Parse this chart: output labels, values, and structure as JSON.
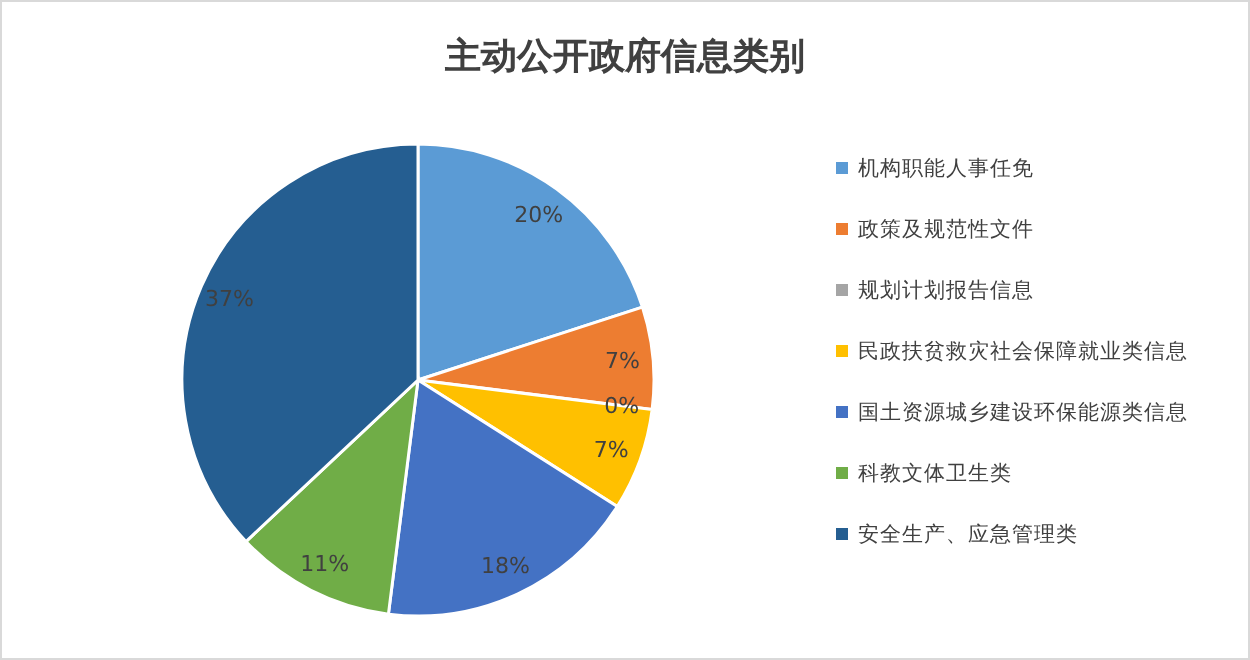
{
  "chart_data": {
    "type": "pie",
    "title": "主动公开政府信息类别",
    "categories": [
      "机构职能人事任免",
      "政策及规范性文件",
      "规划计划报告信息",
      "民政扶贫救灾社会保障就业类信息",
      "国土资源城乡建设环保能源类信息",
      "科教文体卫生类",
      "安全生产、应急管理类"
    ],
    "values": [
      20,
      7,
      0,
      7,
      18,
      11,
      37
    ],
    "colors": [
      "#5b9bd5",
      "#ed7d31",
      "#a5a5a5",
      "#ffc000",
      "#4472c4",
      "#70ad47",
      "#255e91"
    ],
    "value_labels": [
      "20%",
      "7%",
      "0%",
      "7%",
      "18%",
      "11%",
      "37%"
    ],
    "legend": "right"
  }
}
